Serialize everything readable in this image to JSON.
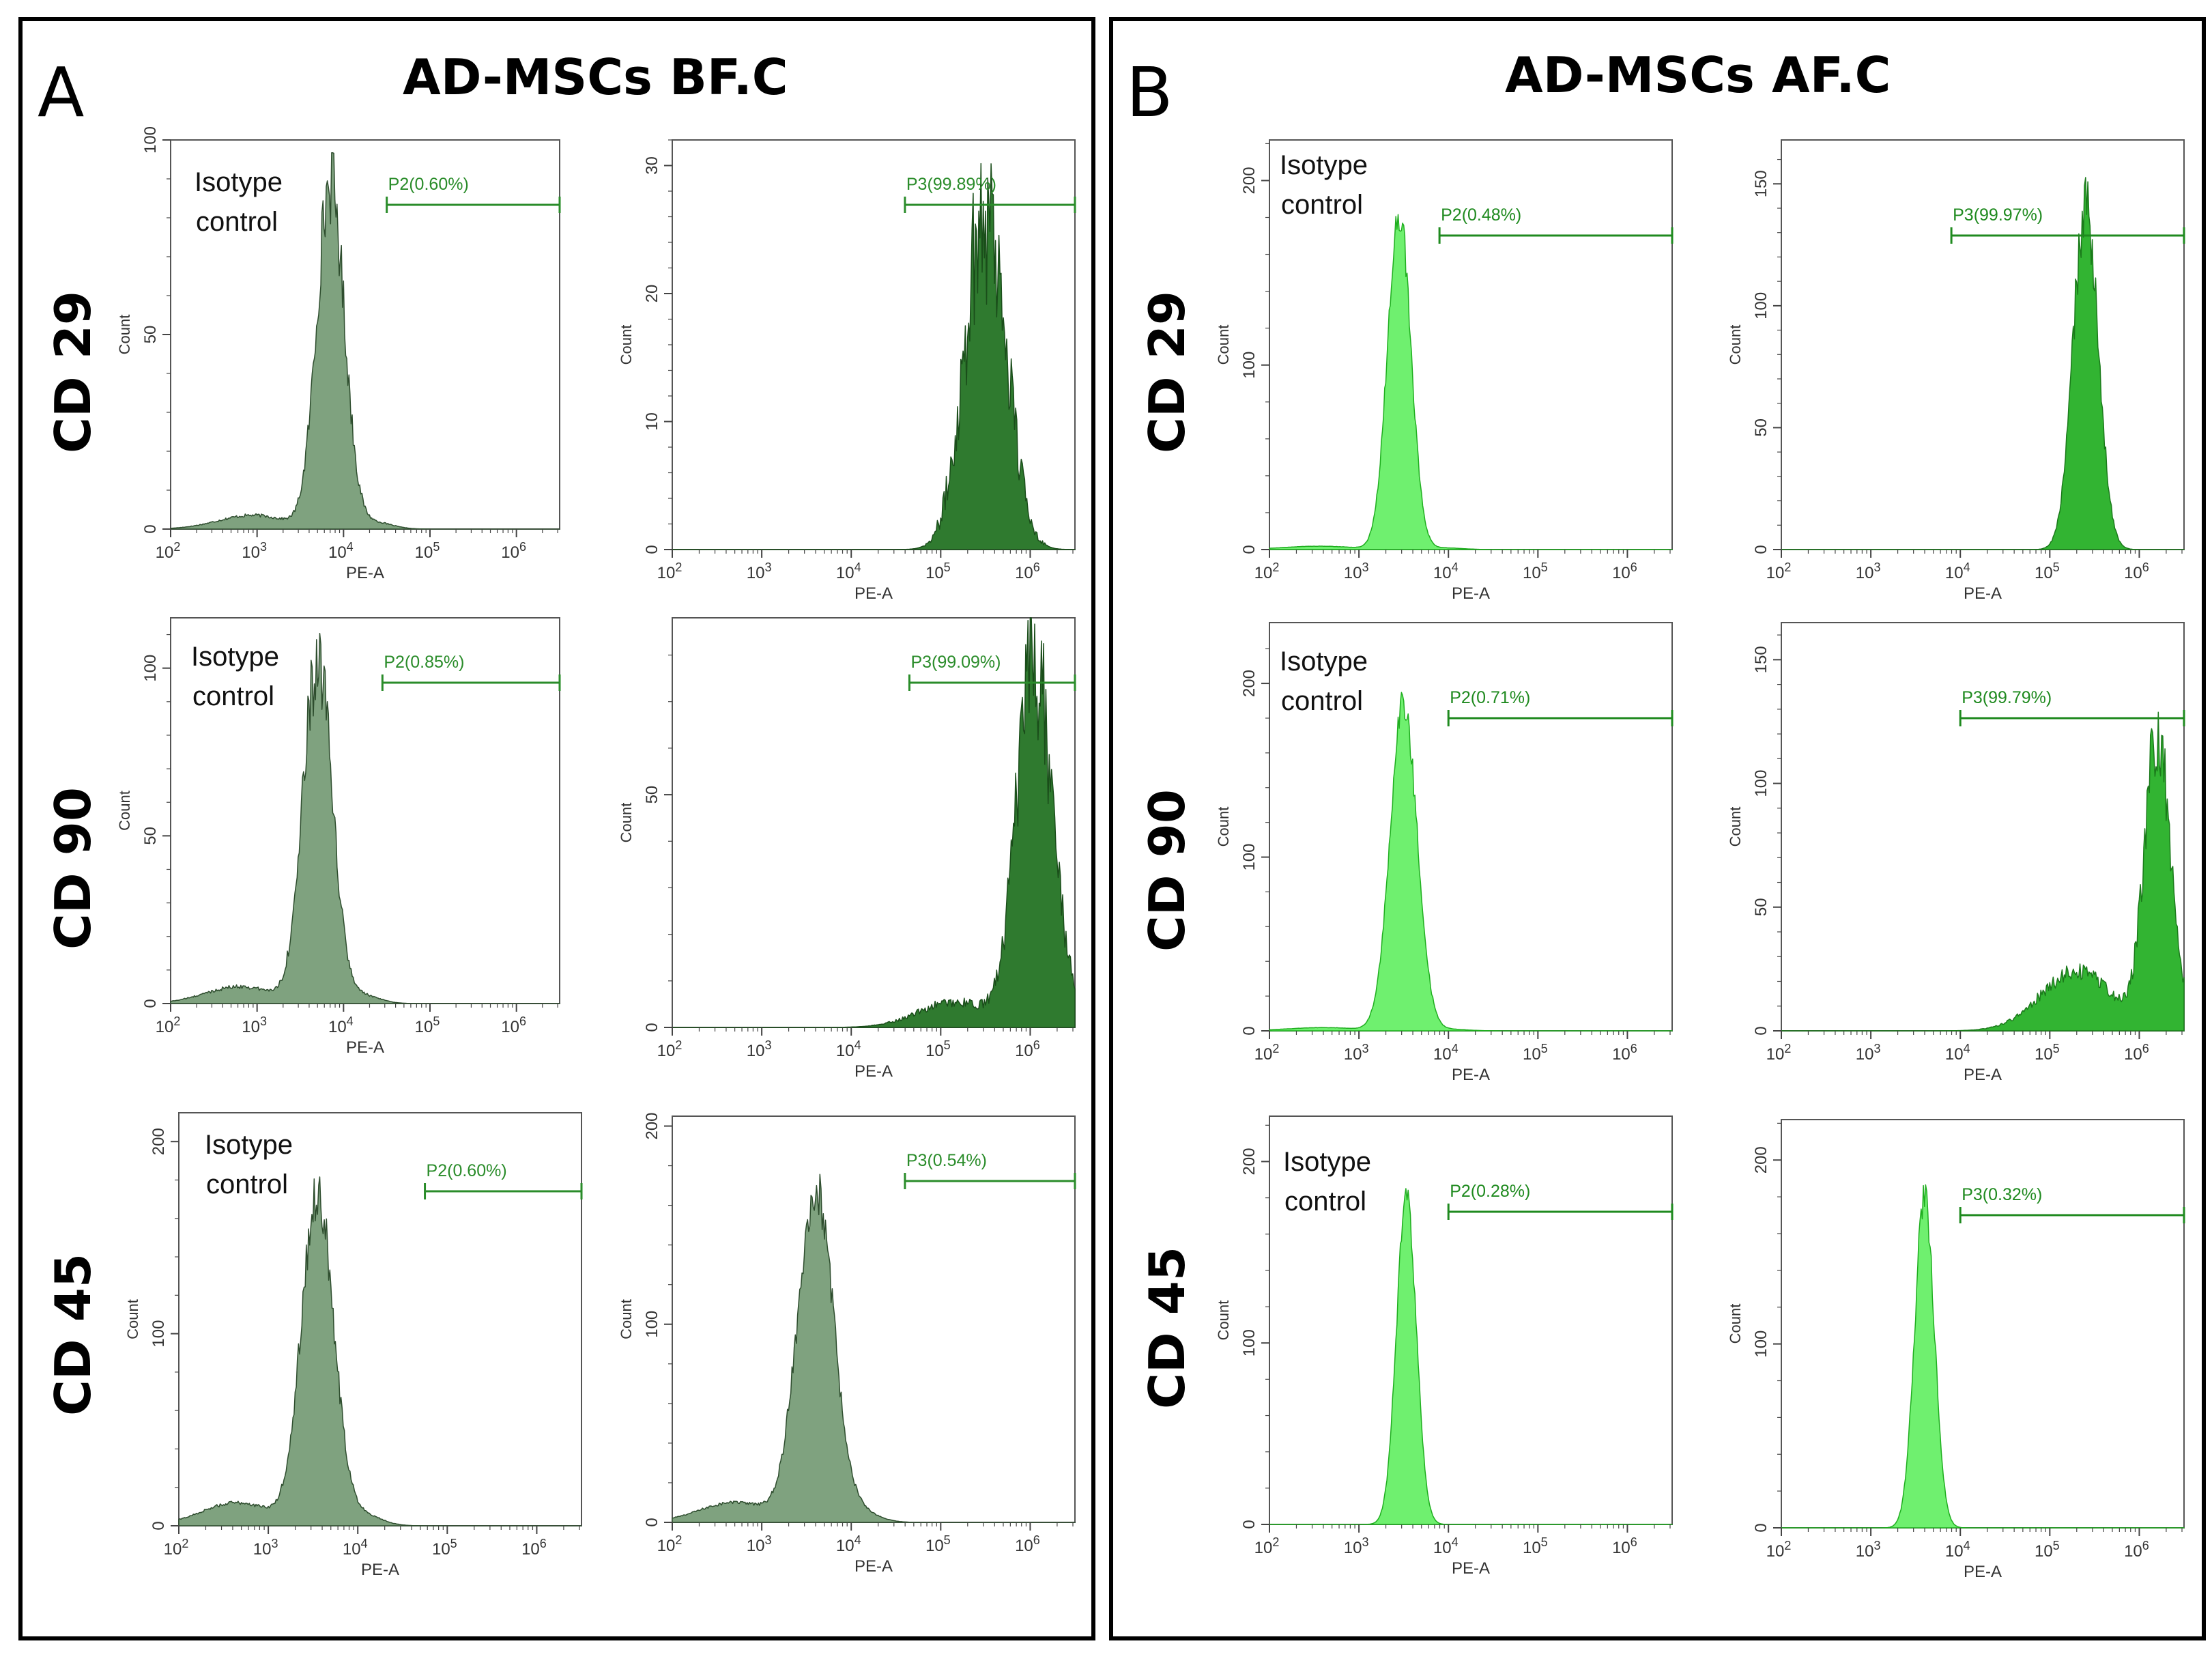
{
  "figure": {
    "panels": [
      {
        "letter": "A",
        "title": "AD-MSCs BF.C"
      },
      {
        "letter": "B",
        "title": "AD-MSCs AF.C"
      }
    ],
    "row_labels": [
      "CD 29",
      "CD 90",
      "CD 45"
    ],
    "isotype_label": [
      "Isotype",
      "control"
    ]
  },
  "colors": {
    "frame": "#000000",
    "gate_text": "#2a8c2a",
    "bf_isotype_fill": "#7fa27f",
    "bf_isotype_stroke": "#2e4d2e",
    "bf_positive_fill": "#2f7a2f",
    "bf_positive_stroke": "#1a4d1a",
    "af_fill": "#6ff06f",
    "af_stroke": "#1fae1f",
    "af_positive_fill": "#32b432",
    "af_positive_stroke": "#1a7a1a"
  },
  "chart_data": [
    {
      "panel": "A",
      "row": "CD 29",
      "kind": "isotype",
      "type": "histogram",
      "xlabel": "PE-A",
      "ylabel": "Count",
      "x_scale": "log",
      "xlim_log10": [
        2,
        6.5
      ],
      "x_ticks": [
        "10^2",
        "10^3",
        "10^4",
        "10^5",
        "10^6"
      ],
      "y_ticks": [
        0,
        50,
        100
      ],
      "ylim": [
        0,
        100
      ],
      "gate": {
        "name": "P2",
        "percent": 0.6,
        "label": "P2(0.60%)",
        "start_log10": 4.5
      },
      "peak": {
        "center_log10": 3.85,
        "width_log10": 0.16,
        "height": 89
      },
      "tail": 0.04,
      "noise": 0.12,
      "fill": "bf_isotype"
    },
    {
      "panel": "A",
      "row": "CD 29",
      "kind": "stained",
      "type": "histogram",
      "xlabel": "PE-A",
      "ylabel": "Count",
      "x_scale": "log",
      "xlim_log10": [
        2,
        6.5
      ],
      "x_ticks": [
        "10^2",
        "10^3",
        "10^4",
        "10^5",
        "10^6"
      ],
      "y_ticks": [
        0,
        10,
        20,
        30
      ],
      "ylim": [
        0,
        32
      ],
      "gate": {
        "name": "P3",
        "percent": 99.89,
        "label": "P3(99.89%)",
        "start_log10": 4.6
      },
      "peak": {
        "center_log10": 5.5,
        "width_log10": 0.23,
        "height": 27
      },
      "tail": 0.0,
      "noise": 0.3,
      "fill": "bf_positive"
    },
    {
      "panel": "A",
      "row": "CD 90",
      "kind": "isotype",
      "type": "histogram",
      "xlabel": "PE-A",
      "ylabel": "Count",
      "x_scale": "log",
      "xlim_log10": [
        2,
        6.5
      ],
      "x_ticks": [
        "10^2",
        "10^3",
        "10^4",
        "10^5",
        "10^6"
      ],
      "y_ticks": [
        0,
        50,
        100
      ],
      "ylim": [
        0,
        115
      ],
      "gate": {
        "name": "P2",
        "percent": 0.85,
        "label": "P2(0.85%)",
        "start_log10": 4.45
      },
      "peak": {
        "center_log10": 3.7,
        "width_log10": 0.17,
        "height": 101
      },
      "tail": 0.05,
      "noise": 0.12,
      "fill": "bf_isotype"
    },
    {
      "panel": "A",
      "row": "CD 90",
      "kind": "stained",
      "type": "histogram",
      "xlabel": "PE-A",
      "ylabel": "Count",
      "x_scale": "log",
      "xlim_log10": [
        2,
        6.5
      ],
      "x_ticks": [
        "10^2",
        "10^3",
        "10^4",
        "10^5",
        "10^6"
      ],
      "y_ticks": [
        0,
        50
      ],
      "ylim": [
        0,
        88
      ],
      "gate": {
        "name": "P3",
        "percent": 99.09,
        "label": "P3(99.09%)",
        "start_log10": 4.65
      },
      "peak": {
        "center_log10": 6.05,
        "width_log10": 0.2,
        "height": 78
      },
      "tail": 0.07,
      "noise": 0.2,
      "fill": "bf_positive"
    },
    {
      "panel": "A",
      "row": "CD 45",
      "kind": "isotype",
      "type": "histogram",
      "xlabel": "PE-A",
      "ylabel": "Count",
      "x_scale": "log",
      "xlim_log10": [
        2,
        6.5
      ],
      "x_ticks": [
        "10^2",
        "10^3",
        "10^4",
        "10^5",
        "10^6"
      ],
      "y_ticks": [
        0,
        100,
        200
      ],
      "ylim": [
        0,
        215
      ],
      "gate": {
        "name": "P2",
        "percent": 0.6,
        "label": "P2(0.60%)",
        "start_log10": 4.75
      },
      "peak": {
        "center_log10": 3.55,
        "width_log10": 0.18,
        "height": 172
      },
      "tail": 0.07,
      "noise": 0.08,
      "fill": "bf_isotype"
    },
    {
      "panel": "A",
      "row": "CD 45",
      "kind": "stained",
      "type": "histogram",
      "xlabel": "PE-A",
      "ylabel": "Count",
      "x_scale": "log",
      "xlim_log10": [
        2,
        6.5
      ],
      "x_ticks": [
        "10^2",
        "10^3",
        "10^4",
        "10^5",
        "10^6"
      ],
      "y_ticks": [
        0,
        100,
        200
      ],
      "ylim": [
        0,
        205
      ],
      "gate": {
        "name": "P3",
        "percent": 0.54,
        "label": "P3(0.54%)",
        "start_log10": 4.6
      },
      "peak": {
        "center_log10": 3.6,
        "width_log10": 0.2,
        "height": 168
      },
      "tail": 0.06,
      "noise": 0.08,
      "fill": "bf_isotype"
    },
    {
      "panel": "B",
      "row": "CD 29",
      "kind": "isotype",
      "type": "histogram",
      "xlabel": "PE-A",
      "ylabel": "Count",
      "x_scale": "log",
      "xlim_log10": [
        2,
        6.5
      ],
      "x_ticks": [
        "10^2",
        "10^3",
        "10^4",
        "10^5",
        "10^6"
      ],
      "y_ticks": [
        0,
        100,
        200
      ],
      "ylim": [
        0,
        222
      ],
      "gate": {
        "name": "P2",
        "percent": 0.48,
        "label": "P2(0.48%)",
        "start_log10": 3.9
      },
      "peak": {
        "center_log10": 3.45,
        "width_log10": 0.13,
        "height": 182
      },
      "tail": 0.01,
      "noise": 0.05,
      "fill": "af"
    },
    {
      "panel": "B",
      "row": "CD 29",
      "kind": "stained",
      "type": "histogram",
      "xlabel": "PE-A",
      "ylabel": "Count",
      "x_scale": "log",
      "xlim_log10": [
        2,
        6.5
      ],
      "x_ticks": [
        "10^2",
        "10^3",
        "10^4",
        "10^5",
        "10^6"
      ],
      "y_ticks": [
        0,
        50,
        100,
        150
      ],
      "ylim": [
        0,
        168
      ],
      "gate": {
        "name": "P3",
        "percent": 99.97,
        "label": "P3(99.97%)",
        "start_log10": 3.9
      },
      "peak": {
        "center_log10": 5.4,
        "width_log10": 0.14,
        "height": 140
      },
      "tail": 0.0,
      "noise": 0.1,
      "fill": "af_positive"
    },
    {
      "panel": "B",
      "row": "CD 90",
      "kind": "isotype",
      "type": "histogram",
      "xlabel": "PE-A",
      "ylabel": "Count",
      "x_scale": "log",
      "xlim_log10": [
        2,
        6.5
      ],
      "x_ticks": [
        "10^2",
        "10^3",
        "10^4",
        "10^5",
        "10^6"
      ],
      "y_ticks": [
        0,
        100,
        200
      ],
      "ylim": [
        0,
        235
      ],
      "gate": {
        "name": "P2",
        "percent": 0.71,
        "label": "P2(0.71%)",
        "start_log10": 4.0
      },
      "peak": {
        "center_log10": 3.5,
        "width_log10": 0.15,
        "height": 188
      },
      "tail": 0.01,
      "noise": 0.05,
      "fill": "af"
    },
    {
      "panel": "B",
      "row": "CD 90",
      "kind": "stained",
      "type": "histogram",
      "xlabel": "PE-A",
      "ylabel": "Count",
      "x_scale": "log",
      "xlim_log10": [
        2,
        6.5
      ],
      "x_ticks": [
        "10^2",
        "10^3",
        "10^4",
        "10^5",
        "10^6"
      ],
      "y_ticks": [
        0,
        50,
        100,
        150
      ],
      "ylim": [
        0,
        165
      ],
      "gate": {
        "name": "P3",
        "percent": 99.79,
        "label": "P3(99.79%)",
        "start_log10": 4.0
      },
      "peak": {
        "center_log10": 6.2,
        "width_log10": 0.14,
        "height": 120
      },
      "tail": 0.2,
      "noise": 0.15,
      "fill": "af_positive"
    },
    {
      "panel": "B",
      "row": "CD 45",
      "kind": "isotype",
      "type": "histogram",
      "xlabel": "PE-A",
      "ylabel": "Count",
      "x_scale": "log",
      "xlim_log10": [
        2,
        6.5
      ],
      "x_ticks": [
        "10^2",
        "10^3",
        "10^4",
        "10^5",
        "10^6"
      ],
      "y_ticks": [
        0,
        100,
        200
      ],
      "ylim": [
        0,
        225
      ],
      "gate": {
        "name": "P2",
        "percent": 0.28,
        "label": "P2(0.28%)",
        "start_log10": 4.0
      },
      "peak": {
        "center_log10": 3.53,
        "width_log10": 0.11,
        "height": 180
      },
      "tail": 0.0,
      "noise": 0.05,
      "fill": "af"
    },
    {
      "panel": "B",
      "row": "CD 45",
      "kind": "stained",
      "type": "histogram",
      "xlabel": "PE-A",
      "ylabel": "Count",
      "x_scale": "log",
      "xlim_log10": [
        2,
        6.5
      ],
      "x_ticks": [
        "10^2",
        "10^3",
        "10^4",
        "10^5",
        "10^6"
      ],
      "y_ticks": [
        0,
        100,
        200
      ],
      "ylim": [
        0,
        222
      ],
      "gate": {
        "name": "P3",
        "percent": 0.32,
        "label": "P3(0.32%)",
        "start_log10": 4.0
      },
      "peak": {
        "center_log10": 3.6,
        "width_log10": 0.11,
        "height": 180
      },
      "tail": 0.0,
      "noise": 0.05,
      "fill": "af"
    }
  ]
}
